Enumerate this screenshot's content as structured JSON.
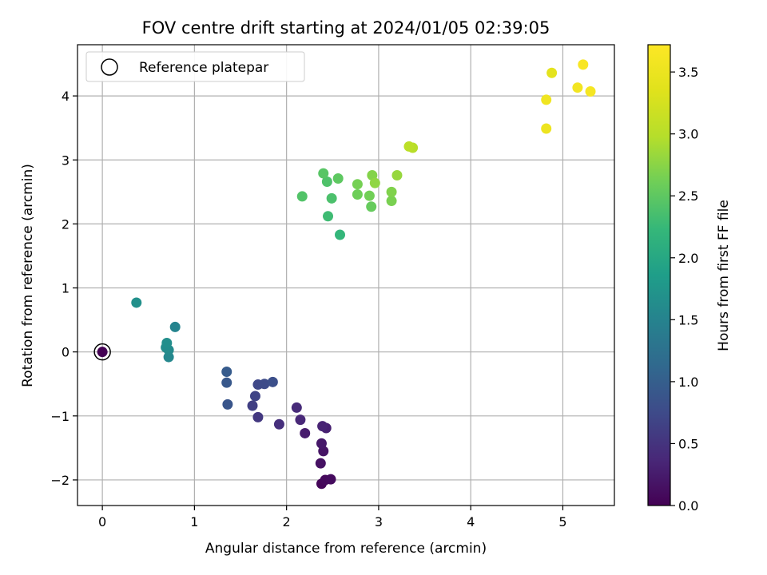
{
  "chart_data": {
    "type": "scatter",
    "title": "FOV centre drift starting at 2024/01/05 02:39:05",
    "xlabel": "Angular distance from reference (arcmin)",
    "ylabel": "Rotation from reference (arcmin)",
    "xlim": [
      -0.27,
      5.56
    ],
    "ylim": [
      -2.4,
      4.8
    ],
    "xticks": [
      0,
      1,
      2,
      3,
      4,
      5
    ],
    "yticks": [
      -2,
      -1,
      0,
      1,
      2,
      3,
      4
    ],
    "grid": true,
    "legend": {
      "position": "top-left",
      "entries": [
        "Reference platepar"
      ]
    },
    "reference_point": {
      "x": 0,
      "y": 0
    },
    "colorbar": {
      "label": "Hours from first FF file",
      "range": [
        0.0,
        3.72
      ],
      "ticks": [
        "0.0",
        "0.5",
        "1.0",
        "1.5",
        "2.0",
        "2.5",
        "3.0",
        "3.5"
      ],
      "tick_values": [
        0.0,
        0.5,
        1.0,
        1.5,
        2.0,
        2.5,
        3.0,
        3.5
      ],
      "colormap": "viridis"
    },
    "points": [
      {
        "x": 0.0,
        "y": 0.0,
        "c": 0.0
      },
      {
        "x": 2.38,
        "y": -2.06,
        "c": 0.05
      },
      {
        "x": 2.42,
        "y": -2.0,
        "c": 0.08
      },
      {
        "x": 2.48,
        "y": -1.99,
        "c": 0.1
      },
      {
        "x": 2.37,
        "y": -1.74,
        "c": 0.15
      },
      {
        "x": 2.4,
        "y": -1.55,
        "c": 0.18
      },
      {
        "x": 2.38,
        "y": -1.43,
        "c": 0.22
      },
      {
        "x": 2.2,
        "y": -1.27,
        "c": 0.26
      },
      {
        "x": 2.43,
        "y": -1.19,
        "c": 0.3
      },
      {
        "x": 2.39,
        "y": -1.16,
        "c": 0.33
      },
      {
        "x": 2.15,
        "y": -1.06,
        "c": 0.37
      },
      {
        "x": 2.11,
        "y": -0.87,
        "c": 0.4
      },
      {
        "x": 1.92,
        "y": -1.13,
        "c": 0.45
      },
      {
        "x": 1.69,
        "y": -1.02,
        "c": 0.55
      },
      {
        "x": 1.63,
        "y": -0.84,
        "c": 0.62
      },
      {
        "x": 1.66,
        "y": -0.69,
        "c": 0.68
      },
      {
        "x": 1.69,
        "y": -0.51,
        "c": 0.72
      },
      {
        "x": 1.76,
        "y": -0.5,
        "c": 0.76
      },
      {
        "x": 1.85,
        "y": -0.47,
        "c": 0.8
      },
      {
        "x": 1.36,
        "y": -0.82,
        "c": 0.88
      },
      {
        "x": 1.35,
        "y": -0.48,
        "c": 0.92
      },
      {
        "x": 1.35,
        "y": -0.31,
        "c": 0.96
      },
      {
        "x": 0.72,
        "y": -0.08,
        "c": 1.55
      },
      {
        "x": 0.72,
        "y": 0.03,
        "c": 1.6
      },
      {
        "x": 0.69,
        "y": 0.07,
        "c": 1.62
      },
      {
        "x": 0.7,
        "y": 0.14,
        "c": 1.65
      },
      {
        "x": 0.79,
        "y": 0.39,
        "c": 1.52
      },
      {
        "x": 0.37,
        "y": 0.77,
        "c": 1.68
      },
      {
        "x": 2.58,
        "y": 1.83,
        "c": 2.22
      },
      {
        "x": 2.45,
        "y": 2.12,
        "c": 2.3
      },
      {
        "x": 2.49,
        "y": 2.4,
        "c": 2.38
      },
      {
        "x": 2.17,
        "y": 2.43,
        "c": 2.42
      },
      {
        "x": 2.44,
        "y": 2.66,
        "c": 2.4
      },
      {
        "x": 2.4,
        "y": 2.79,
        "c": 2.46
      },
      {
        "x": 2.56,
        "y": 2.71,
        "c": 2.5
      },
      {
        "x": 2.92,
        "y": 2.27,
        "c": 2.55
      },
      {
        "x": 2.77,
        "y": 2.46,
        "c": 2.6
      },
      {
        "x": 2.9,
        "y": 2.44,
        "c": 2.62
      },
      {
        "x": 2.77,
        "y": 2.62,
        "c": 2.64
      },
      {
        "x": 3.14,
        "y": 2.36,
        "c": 2.66
      },
      {
        "x": 3.14,
        "y": 2.5,
        "c": 2.7
      },
      {
        "x": 2.93,
        "y": 2.76,
        "c": 2.72
      },
      {
        "x": 2.96,
        "y": 2.64,
        "c": 2.78
      },
      {
        "x": 3.2,
        "y": 2.76,
        "c": 2.82
      },
      {
        "x": 3.37,
        "y": 3.19,
        "c": 3.0
      },
      {
        "x": 3.33,
        "y": 3.21,
        "c": 3.04
      },
      {
        "x": 4.82,
        "y": 3.49,
        "c": 3.52
      },
      {
        "x": 4.82,
        "y": 3.94,
        "c": 3.55
      },
      {
        "x": 4.88,
        "y": 4.36,
        "c": 3.4
      },
      {
        "x": 5.16,
        "y": 4.13,
        "c": 3.58
      },
      {
        "x": 5.3,
        "y": 4.07,
        "c": 3.62
      },
      {
        "x": 5.22,
        "y": 4.49,
        "c": 3.66
      }
    ]
  }
}
